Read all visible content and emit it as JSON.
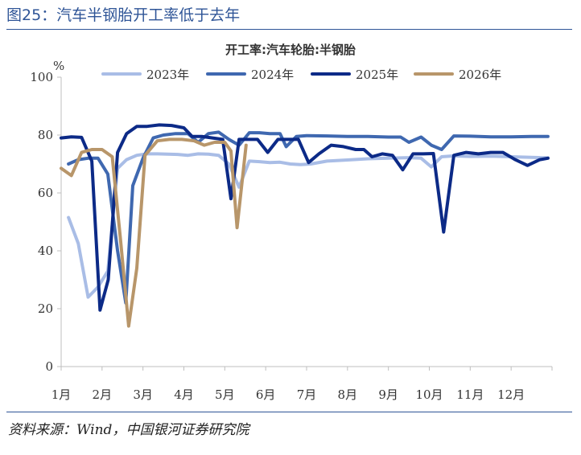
{
  "figure": {
    "title": "图25：汽车半钢胎开工率低于去年",
    "source": "资料来源：Wind，中国银河证券研究院"
  },
  "colors": {
    "accent": "#2f5597",
    "axis": "#bfbfbf",
    "s2023": "#a9bde6",
    "s2024": "#3f68b0",
    "s2025": "#0c2a87",
    "s2026": "#b8966a"
  },
  "chart_data": {
    "type": "line",
    "title": "开工率:汽车轮胎:半钢胎",
    "ylabel": "%",
    "xlabel": "",
    "ylim": [
      0,
      100
    ],
    "yticks": [
      0,
      20,
      40,
      60,
      80,
      100
    ],
    "xlim": [
      1,
      13
    ],
    "xticks": [
      "1月",
      "2月",
      "3月",
      "4月",
      "5月",
      "6月",
      "7月",
      "8月",
      "9月",
      "10月",
      "11月",
      "12月"
    ],
    "legend_position": "top",
    "grid": false,
    "series": [
      {
        "name": "2023年",
        "color": "#a9bde6",
        "x": [
          1.18,
          1.42,
          1.66,
          1.9,
          2.14,
          2.38,
          2.6,
          2.85,
          3.1,
          3.35,
          3.6,
          3.85,
          4.1,
          4.35,
          4.6,
          4.85,
          5.1,
          5.35,
          5.6,
          5.85,
          6.1,
          6.35,
          6.6,
          6.85,
          7.1,
          7.5,
          8.0,
          8.5,
          9.0,
          9.5,
          9.8,
          10.05,
          10.3,
          10.6,
          11.0,
          11.5,
          12.0,
          12.5,
          12.9
        ],
        "y": [
          51.5,
          42.5,
          24,
          27.5,
          33,
          68.5,
          71.5,
          73,
          73.5,
          73.5,
          73.4,
          73.3,
          73,
          73.5,
          73.4,
          73,
          70,
          62,
          71,
          70.8,
          70.5,
          70.6,
          70,
          69.8,
          70,
          71,
          71.4,
          71.8,
          72,
          72.2,
          72,
          69,
          72.5,
          72.8,
          72.6,
          72.7,
          72.5,
          72.3,
          72.1
        ]
      },
      {
        "name": "2024年",
        "color": "#3f68b0",
        "x": [
          1.18,
          1.42,
          1.66,
          1.9,
          2.14,
          2.38,
          2.58,
          2.75,
          3.0,
          3.25,
          3.5,
          3.8,
          4.1,
          4.35,
          4.6,
          4.85,
          5.1,
          5.35,
          5.6,
          5.85,
          6.1,
          6.35,
          6.5,
          6.75,
          7.0,
          7.5,
          8.0,
          8.5,
          9.0,
          9.3,
          9.5,
          9.8,
          10.05,
          10.3,
          10.6,
          11.0,
          11.5,
          12.0,
          12.5,
          12.9
        ],
        "y": [
          70,
          71.5,
          72,
          72,
          66.5,
          40,
          22,
          62.5,
          72,
          79,
          80,
          80.5,
          80.5,
          77.5,
          80.5,
          81,
          78.5,
          76.5,
          80.8,
          80.8,
          80.5,
          80.5,
          76,
          79.5,
          79.8,
          79.7,
          79.5,
          79.5,
          79.3,
          79.3,
          77.5,
          79.3,
          76.5,
          75,
          79.7,
          79.6,
          79.4,
          79.4,
          79.5,
          79.5
        ]
      },
      {
        "name": "2025年",
        "color": "#0c2a87",
        "x": [
          1.0,
          1.25,
          1.5,
          1.75,
          1.95,
          2.15,
          2.38,
          2.6,
          2.85,
          3.1,
          3.4,
          3.7,
          4.0,
          4.2,
          4.45,
          4.7,
          4.95,
          5.15,
          5.35,
          5.55,
          5.8,
          6.05,
          6.3,
          6.55,
          6.8,
          7.05,
          7.3,
          7.6,
          7.9,
          8.2,
          8.4,
          8.6,
          8.85,
          9.1,
          9.35,
          9.6,
          9.85,
          10.1,
          10.35,
          10.6,
          10.9,
          11.2,
          11.5,
          11.8,
          12.1,
          12.4,
          12.7,
          12.9
        ],
        "y": [
          79,
          79.4,
          79.2,
          71,
          19.5,
          30,
          74,
          80.5,
          83,
          83,
          83.5,
          83.3,
          82.5,
          79.5,
          79.5,
          79,
          78.5,
          58,
          78.5,
          78.5,
          78.5,
          74,
          78.5,
          78.5,
          78.5,
          70.5,
          73.5,
          76.5,
          76,
          75,
          75,
          72.5,
          73.5,
          73,
          68,
          73.5,
          73.5,
          73.6,
          46.5,
          73,
          74,
          73.5,
          74,
          74,
          71.5,
          69.5,
          71.5,
          72
        ]
      },
      {
        "name": "2026年",
        "color": "#b8966a",
        "x": [
          1.0,
          1.25,
          1.5,
          1.75,
          2.0,
          2.25,
          2.45,
          2.65,
          2.85,
          3.05,
          3.35,
          3.65,
          3.95,
          4.25,
          4.5,
          4.75,
          5.0,
          5.15,
          5.3,
          5.52
        ],
        "y": [
          68.5,
          66,
          74,
          75,
          75,
          72.5,
          44,
          14,
          34,
          73,
          78,
          78.5,
          78.5,
          78,
          76.5,
          77.5,
          77.5,
          74.5,
          48,
          76.5
        ]
      }
    ]
  }
}
